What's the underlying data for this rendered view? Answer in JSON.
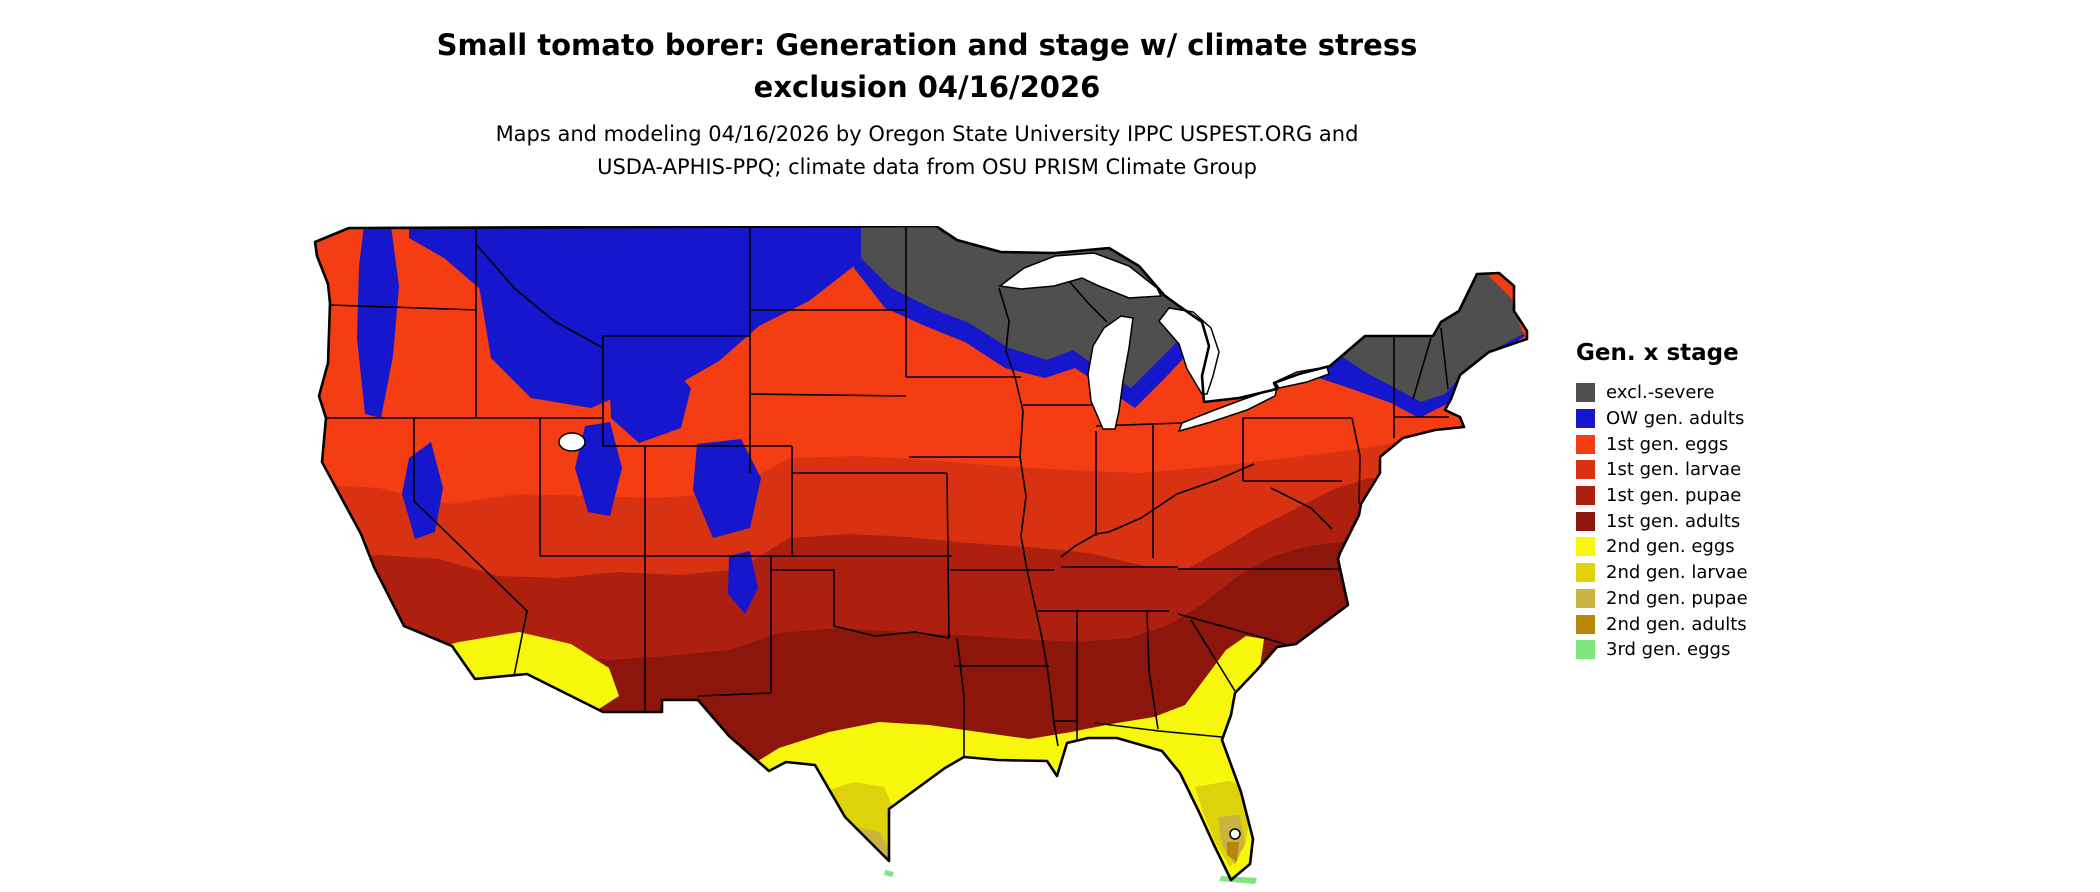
{
  "title": {
    "line1": "Small tomato borer: Generation and stage w/ climate stress",
    "line2": "exclusion 04/16/2026"
  },
  "subtitle": {
    "line1": "Maps and modeling 04/16/2026 by Oregon State University IPPC USPEST.ORG and",
    "line2": "USDA-APHIS-PPQ; climate data from OSU PRISM Climate Group"
  },
  "legend": {
    "title": "Gen. x stage",
    "items": [
      {
        "label": "excl.-severe",
        "color": "#4f4f4f"
      },
      {
        "label": "OW gen. adults",
        "color": "#1616cc"
      },
      {
        "label": "1st gen. eggs",
        "color": "#f53d13"
      },
      {
        "label": "1st gen. larvae",
        "color": "#d93212"
      },
      {
        "label": "1st gen. pupae",
        "color": "#ad2010"
      },
      {
        "label": "1st gen. adults",
        "color": "#8c150c"
      },
      {
        "label": "2nd gen. eggs",
        "color": "#f7f70c"
      },
      {
        "label": "2nd gen. larvae",
        "color": "#ded20a"
      },
      {
        "label": "2nd gen. pupae",
        "color": "#c9b441"
      },
      {
        "label": "2nd gen. adults",
        "color": "#b8860b"
      },
      {
        "label": "3rd gen. eggs",
        "color": "#7fe57f"
      }
    ]
  },
  "map": {
    "description": "Contiguous United States map of small tomato borer generation and life stage with climate stress exclusion, 04/16/2026",
    "border_color": "#000000",
    "water_color": "#ffffff"
  }
}
